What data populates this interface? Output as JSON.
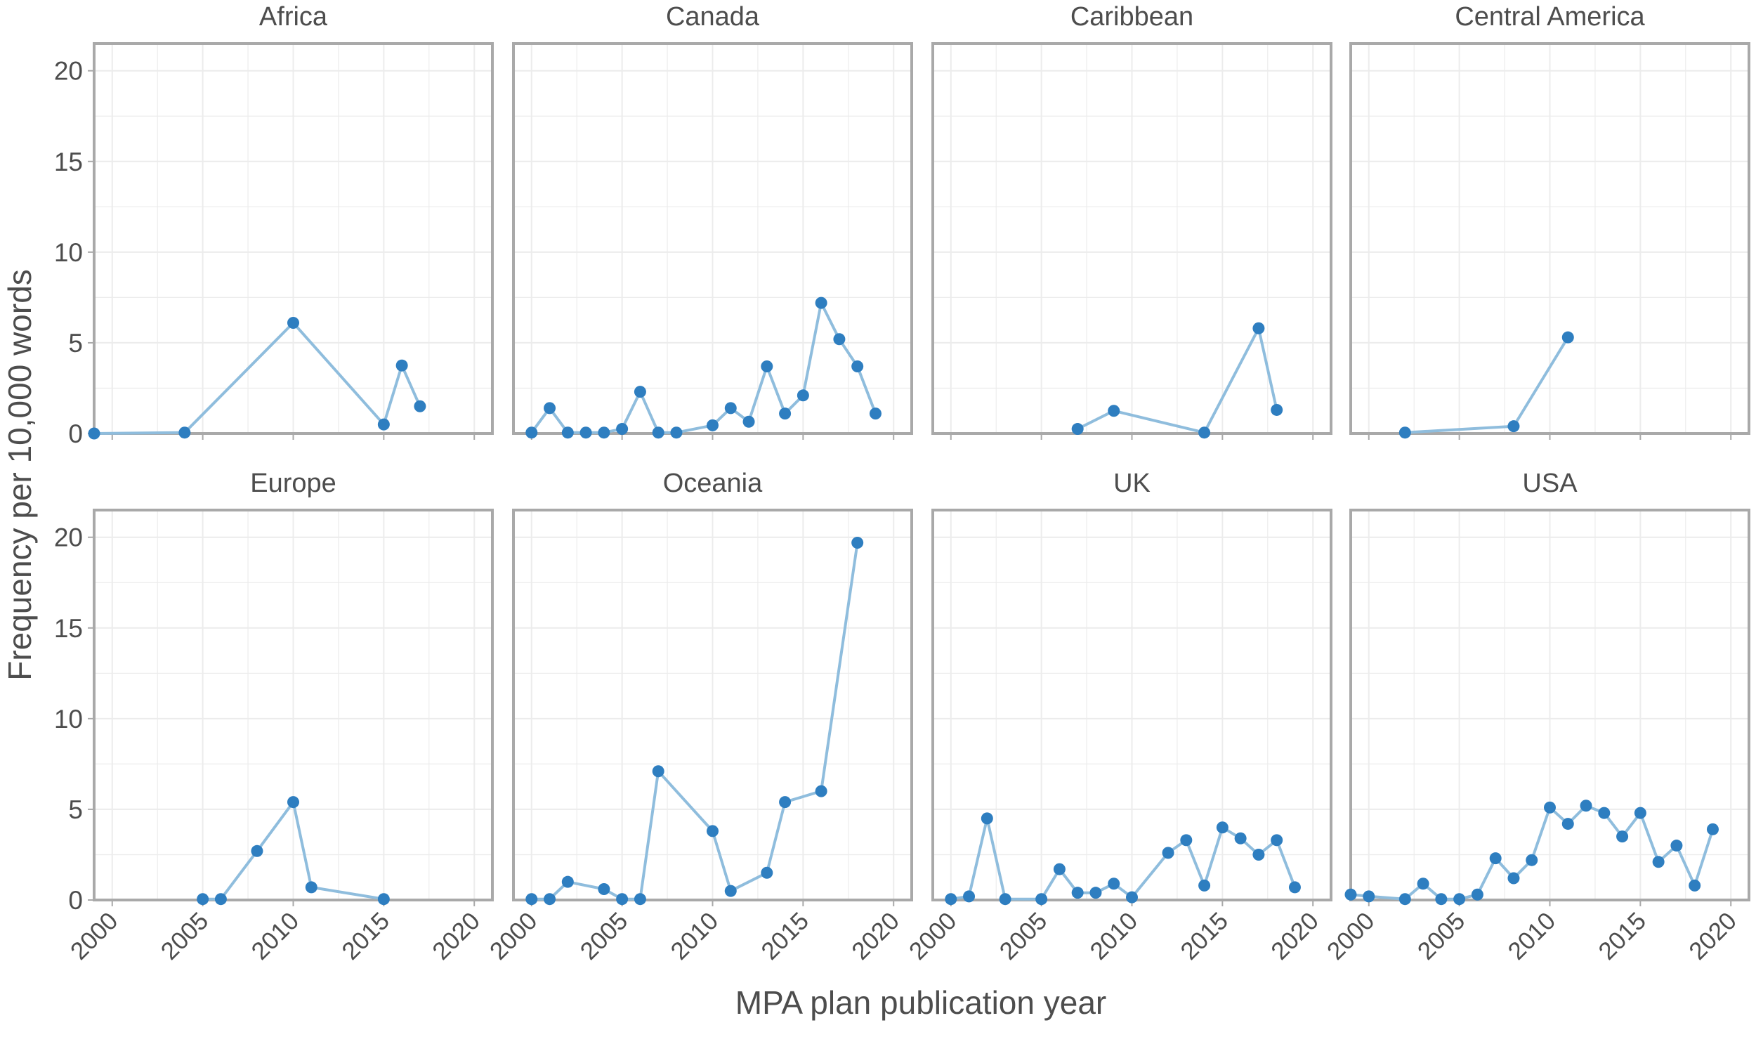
{
  "figure": {
    "ylabel": "Frequency per 10,000 words",
    "xlabel": "MPA plan publication year"
  },
  "colors": {
    "point": "#2e7ec0",
    "line": "#8fbddd",
    "frame": "#a9a9a9",
    "grid": "#ececec",
    "text": "#4d4d4d"
  },
  "chart_data": {
    "type": "line",
    "facet_layout": "2 rows x 4 columns, shared axes",
    "xlabel": "MPA plan publication year",
    "ylabel": "Frequency per 10,000 words",
    "xlim": [
      1999,
      2021
    ],
    "ylim": [
      0,
      21.5
    ],
    "xticks": [
      2000,
      2005,
      2010,
      2015,
      2020
    ],
    "yticks": [
      0,
      5,
      10,
      15,
      20
    ],
    "grid": true,
    "legend": "none",
    "panels": [
      {
        "name": "Africa",
        "points": [
          [
            1999,
            0
          ],
          [
            2004,
            0.05
          ],
          [
            2010,
            6.1
          ],
          [
            2015,
            0.5
          ],
          [
            2016,
            3.75
          ],
          [
            2017,
            1.5
          ]
        ]
      },
      {
        "name": "Canada",
        "points": [
          [
            2000,
            0.05
          ],
          [
            2001,
            1.4
          ],
          [
            2002,
            0.05
          ],
          [
            2003,
            0.05
          ],
          [
            2004,
            0.05
          ],
          [
            2005,
            0.25
          ],
          [
            2006,
            2.3
          ],
          [
            2007,
            0.05
          ],
          [
            2008,
            0.05
          ],
          [
            2010,
            0.45
          ],
          [
            2011,
            1.4
          ],
          [
            2012,
            0.65
          ],
          [
            2013,
            3.7
          ],
          [
            2014,
            1.1
          ],
          [
            2015,
            2.1
          ],
          [
            2016,
            7.2
          ],
          [
            2017,
            5.2
          ],
          [
            2018,
            3.7
          ],
          [
            2019,
            1.1
          ]
        ]
      },
      {
        "name": "Caribbean",
        "points": [
          [
            2007,
            0.25
          ],
          [
            2009,
            1.25
          ],
          [
            2014,
            0.05
          ],
          [
            2017,
            5.8
          ],
          [
            2018,
            1.3
          ]
        ]
      },
      {
        "name": "Central America",
        "points": [
          [
            2002,
            0.05
          ],
          [
            2008,
            0.4
          ],
          [
            2011,
            5.3
          ]
        ]
      },
      {
        "name": "Europe",
        "points": [
          [
            2005,
            0.05
          ],
          [
            2006,
            0.05
          ],
          [
            2008,
            2.7
          ],
          [
            2010,
            5.4
          ],
          [
            2011,
            0.7
          ],
          [
            2015,
            0.05
          ]
        ]
      },
      {
        "name": "Oceania",
        "points": [
          [
            2000,
            0.05
          ],
          [
            2001,
            0.05
          ],
          [
            2002,
            1.0
          ],
          [
            2004,
            0.6
          ],
          [
            2005,
            0.05
          ],
          [
            2006,
            0.05
          ],
          [
            2007,
            7.1
          ],
          [
            2010,
            3.8
          ],
          [
            2011,
            0.5
          ],
          [
            2013,
            1.5
          ],
          [
            2014,
            5.4
          ],
          [
            2016,
            6.0
          ],
          [
            2018,
            19.7
          ]
        ]
      },
      {
        "name": "UK",
        "points": [
          [
            2000,
            0.05
          ],
          [
            2001,
            0.2
          ],
          [
            2002,
            4.5
          ],
          [
            2003,
            0.05
          ],
          [
            2005,
            0.05
          ],
          [
            2006,
            1.7
          ],
          [
            2007,
            0.4
          ],
          [
            2008,
            0.4
          ],
          [
            2009,
            0.9
          ],
          [
            2010,
            0.15
          ],
          [
            2012,
            2.6
          ],
          [
            2013,
            3.3
          ],
          [
            2014,
            0.8
          ],
          [
            2015,
            4.0
          ],
          [
            2016,
            3.4
          ],
          [
            2017,
            2.5
          ],
          [
            2018,
            3.3
          ],
          [
            2019,
            0.7
          ]
        ]
      },
      {
        "name": "USA",
        "points": [
          [
            1999,
            0.3
          ],
          [
            2000,
            0.2
          ],
          [
            2002,
            0.05
          ],
          [
            2003,
            0.9
          ],
          [
            2004,
            0.05
          ],
          [
            2005,
            0.05
          ],
          [
            2006,
            0.3
          ],
          [
            2007,
            2.3
          ],
          [
            2008,
            1.2
          ],
          [
            2009,
            2.2
          ],
          [
            2010,
            5.1
          ],
          [
            2011,
            4.2
          ],
          [
            2012,
            5.2
          ],
          [
            2013,
            4.8
          ],
          [
            2014,
            3.5
          ],
          [
            2015,
            4.8
          ],
          [
            2016,
            2.1
          ],
          [
            2017,
            3.0
          ],
          [
            2018,
            0.8
          ],
          [
            2019,
            3.9
          ]
        ]
      }
    ]
  }
}
